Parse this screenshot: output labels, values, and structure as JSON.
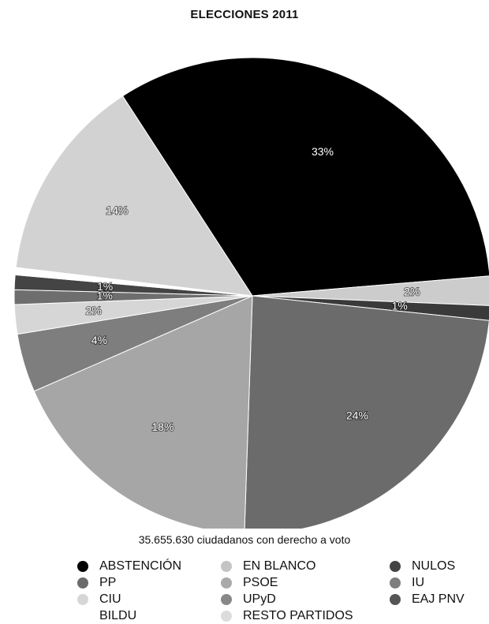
{
  "chart_data": {
    "type": "pie",
    "title": "ELECCIONES 2011",
    "subtitle": "35.655.630 ciudadanos con derecho a voto",
    "slices": [
      {
        "name": "ABSTENCIÓN",
        "value": 33,
        "label": "33%",
        "color": "#000000"
      },
      {
        "name": "CIU",
        "value": 2,
        "label": "2%",
        "color": "#cccccc"
      },
      {
        "name": "NULOS",
        "value": 1,
        "label": "1%",
        "color": "#3a3a3a"
      },
      {
        "name": "PP",
        "value": 24,
        "label": "24%",
        "color": "#6b6b6b"
      },
      {
        "name": "PSOE",
        "value": 18,
        "label": "18%",
        "color": "#a6a6a6"
      },
      {
        "name": "IU",
        "value": 4,
        "label": "4%",
        "color": "#7e7e7e"
      },
      {
        "name": "EN BLANCO",
        "value": 2,
        "label": "2%",
        "color": "#d6d6d6"
      },
      {
        "name": "UPyD",
        "value": 1,
        "label": "1%",
        "color": "#6e6e6e"
      },
      {
        "name": "EAJ PNV",
        "value": 1,
        "label": "1%",
        "color": "#444444"
      },
      {
        "name": "BILDU",
        "value": 0.5,
        "label": "",
        "color": "#ffffff"
      },
      {
        "name": "RESTO PARTIDOS",
        "value": 14,
        "label": "14%",
        "color": "#d2d2d2"
      }
    ],
    "legend": [
      {
        "name": "ABSTENCIÓN",
        "color": "#000000"
      },
      {
        "name": "EN BLANCO",
        "color": "#c4c4c4"
      },
      {
        "name": "NULOS",
        "color": "#444444"
      },
      {
        "name": "PP",
        "color": "#6b6b6b"
      },
      {
        "name": "PSOE",
        "color": "#a9a9a9"
      },
      {
        "name": "IU",
        "color": "#7e7e7e"
      },
      {
        "name": "CIU",
        "color": "#d6d6d6"
      },
      {
        "name": "UPyD",
        "color": "#888888"
      },
      {
        "name": "EAJ PNV",
        "color": "#555555"
      },
      {
        "name": "BILDU",
        "color": ""
      },
      {
        "name": "RESTO PARTIDOS",
        "color": "#dcdcdc"
      }
    ],
    "legend_placement": "bottom"
  }
}
